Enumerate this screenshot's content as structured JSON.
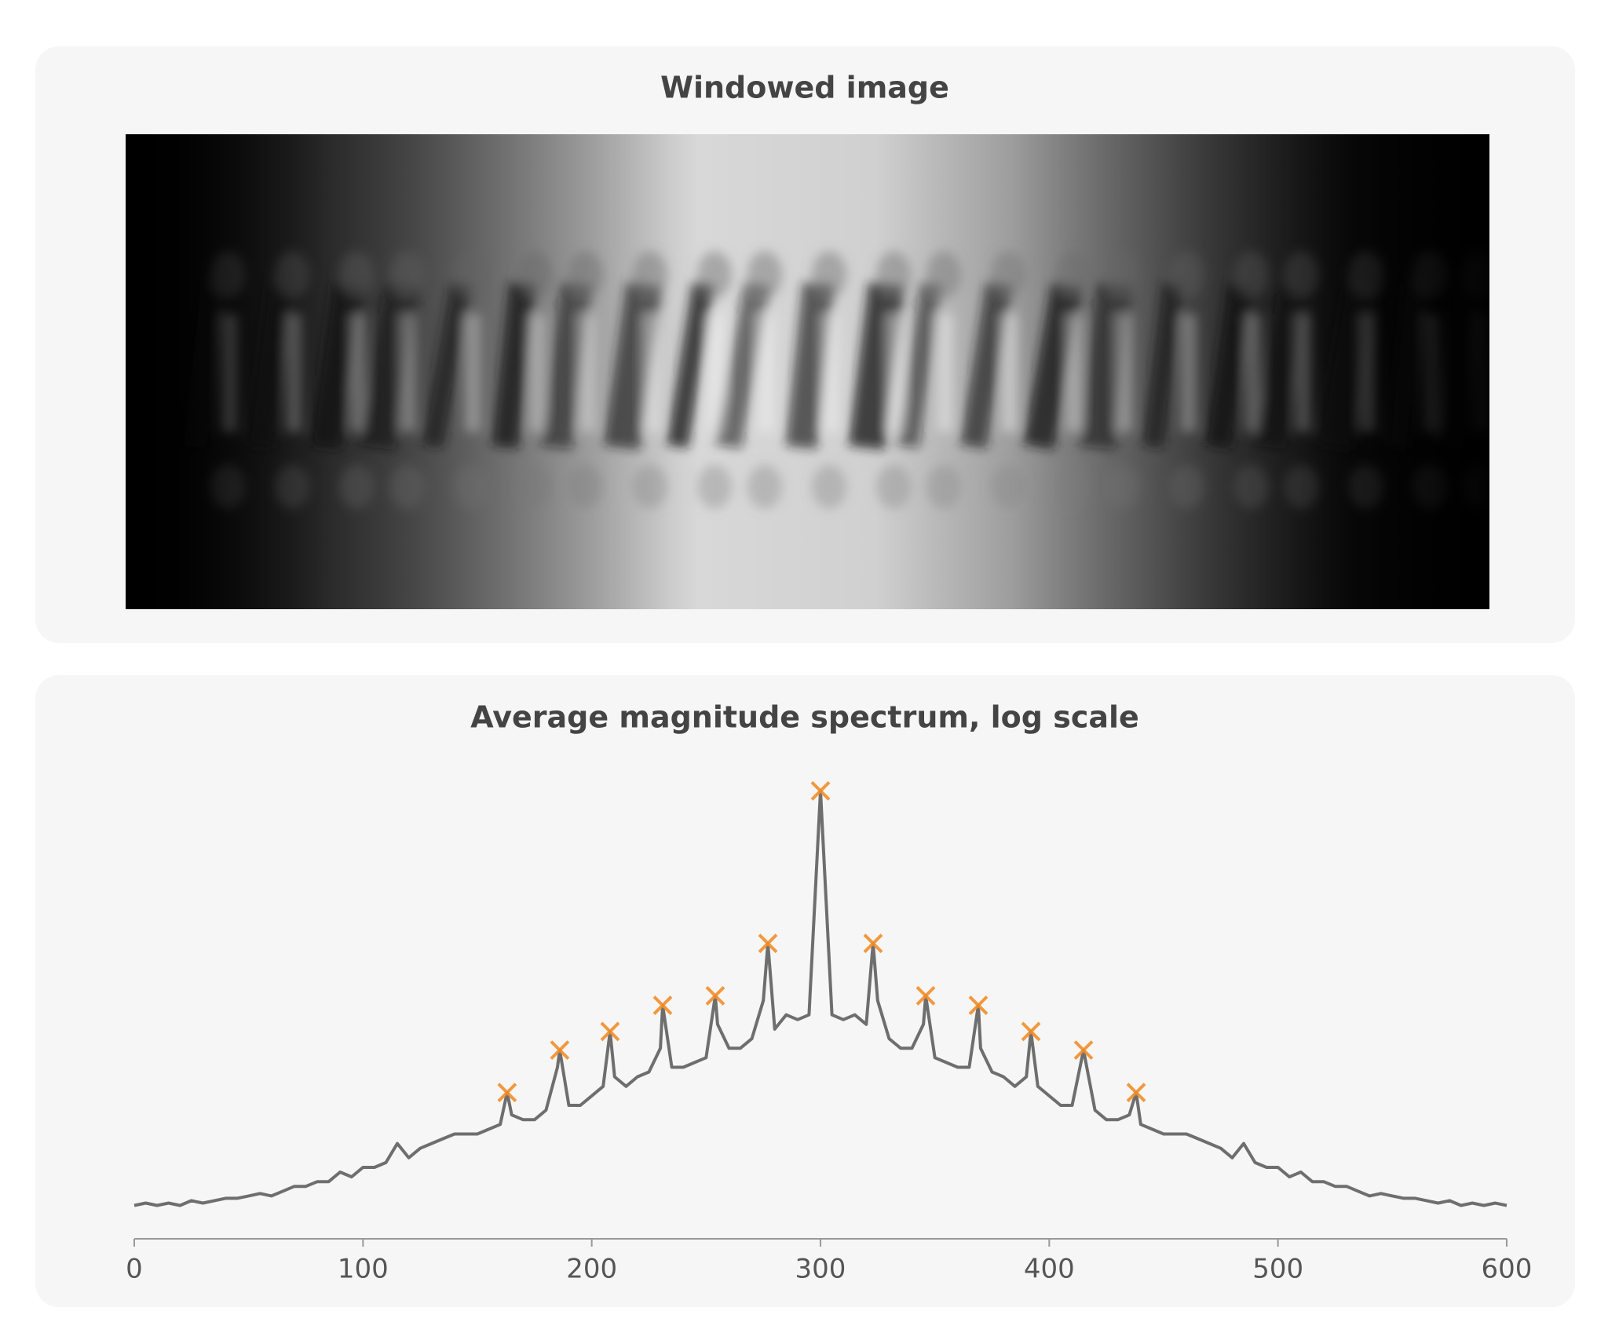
{
  "image_panel": {
    "title": "Windowed image"
  },
  "chart_data": {
    "type": "line",
    "title": "Average magnitude spectrum, log scale",
    "xlim": [
      0,
      600
    ],
    "xticks": [
      0,
      100,
      200,
      300,
      400,
      500,
      600
    ],
    "ylim": [
      0,
      100
    ],
    "grid": false,
    "series": [
      {
        "name": null,
        "color": "#6e6e6e",
        "x": [
          0,
          5,
          10,
          15,
          20,
          25,
          30,
          35,
          40,
          45,
          50,
          55,
          60,
          65,
          70,
          75,
          80,
          85,
          90,
          95,
          100,
          105,
          110,
          115,
          120,
          125,
          130,
          135,
          140,
          145,
          150,
          155,
          160,
          163,
          165,
          170,
          175,
          180,
          185,
          186,
          190,
          195,
          200,
          205,
          208,
          210,
          215,
          220,
          225,
          230,
          231,
          235,
          240,
          245,
          250,
          254,
          255,
          260,
          265,
          270,
          275,
          277,
          280,
          285,
          290,
          295,
          300,
          305,
          310,
          315,
          320,
          323,
          325,
          330,
          335,
          340,
          345,
          346,
          350,
          355,
          360,
          365,
          369,
          370,
          375,
          380,
          385,
          390,
          392,
          395,
          400,
          405,
          410,
          415,
          420,
          425,
          430,
          435,
          438,
          440,
          445,
          450,
          455,
          460,
          465,
          470,
          475,
          480,
          485,
          490,
          495,
          500,
          505,
          510,
          515,
          520,
          525,
          530,
          535,
          540,
          545,
          550,
          555,
          560,
          565,
          570,
          575,
          580,
          585,
          590,
          595,
          600
        ],
        "values": [
          7,
          7.5,
          7,
          7.5,
          7,
          8,
          7.5,
          8,
          8.5,
          8.5,
          9,
          9.5,
          9,
          10,
          11,
          11,
          12,
          12,
          14,
          13,
          15,
          15,
          16,
          20,
          17,
          19,
          20,
          21,
          22,
          22,
          22,
          23,
          24,
          30.7,
          26,
          25,
          25,
          27,
          36,
          39.6,
          28,
          28,
          30,
          32,
          43.5,
          34,
          32,
          34,
          35,
          40,
          49,
          36,
          36,
          37,
          38,
          51,
          45,
          40,
          40,
          42,
          50,
          62,
          44,
          47,
          46,
          47,
          94,
          47,
          46,
          47,
          45,
          62,
          50,
          42,
          40,
          40,
          45,
          51,
          38,
          37,
          36,
          36,
          49,
          40,
          35,
          34,
          32,
          34,
          43.5,
          32,
          30,
          28,
          28,
          39.6,
          27,
          25,
          25,
          26,
          30.7,
          24,
          23,
          22,
          22,
          22,
          21,
          20,
          19,
          17,
          20,
          16,
          15,
          15,
          13,
          14,
          12,
          12,
          11,
          11,
          10,
          9,
          9.5,
          9,
          8.5,
          8.5,
          8,
          7.5,
          8,
          7,
          7.5,
          7,
          7.5,
          7
        ]
      },
      {
        "name": null,
        "type": "scatter",
        "marker": "x",
        "color": "#f28e2b",
        "x": [
          163,
          186,
          208,
          231,
          254,
          277,
          300,
          323,
          346,
          369,
          392,
          415,
          438
        ],
        "values": [
          30.7,
          39.6,
          43.5,
          49,
          51,
          62,
          94,
          62,
          51,
          49,
          43.5,
          39.6,
          30.7
        ]
      }
    ]
  }
}
